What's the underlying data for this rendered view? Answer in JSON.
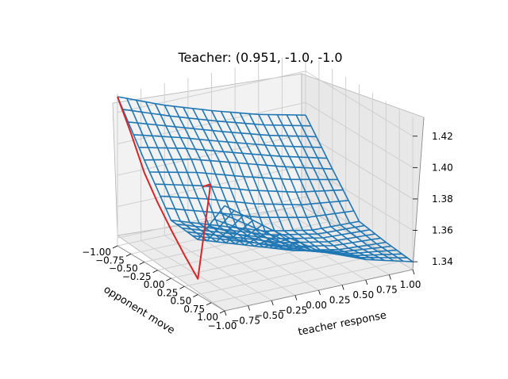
{
  "chart_data": {
    "type": "surface",
    "title": "Teacher: (0.951, -1.0, -1.0",
    "xlabel": "opponent move",
    "ylabel": "teacher response",
    "zlabel": "",
    "x_ticks": [
      "−1.00",
      "−0.75",
      "−0.50",
      "−0.25",
      "0.00",
      "0.25",
      "0.50",
      "0.75",
      "1.00"
    ],
    "y_ticks": [
      "−1.00",
      "−0.75",
      "−0.50",
      "−0.25",
      "0.00",
      "0.25",
      "0.50",
      "0.75",
      "1.00"
    ],
    "z_ticks": [
      "1.34",
      "1.36",
      "1.38",
      "1.40",
      "1.42"
    ],
    "xlim": [
      -1.0,
      1.0
    ],
    "ylim": [
      -1.0,
      1.0
    ],
    "zlim": [
      1.335,
      1.432
    ],
    "surface_color": "#1f77b4",
    "curve_color": "#d62728",
    "surface_samples": {
      "x": [
        -1.0,
        -0.5,
        0.0,
        0.5,
        1.0
      ],
      "y": [
        -1.0,
        -0.5,
        0.0,
        0.5,
        1.0
      ],
      "z": [
        [
          1.43,
          1.418,
          1.408,
          1.399,
          1.392
        ],
        [
          1.4,
          1.394,
          1.385,
          1.376,
          1.368
        ],
        [
          1.372,
          1.362,
          1.352,
          1.346,
          1.345
        ],
        [
          1.37,
          1.36,
          1.35,
          1.344,
          1.342
        ],
        [
          1.402,
          1.38,
          1.36,
          1.348,
          1.34
        ]
      ]
    },
    "red_curve": {
      "x": [
        -1.0,
        -0.75,
        -0.5,
        -0.25,
        0.0,
        0.25,
        0.5,
        0.55,
        0.55,
        0.5
      ],
      "y": [
        -1.0,
        -1.0,
        -1.0,
        -1.0,
        -1.0,
        -1.0,
        -1.0,
        -0.9,
        -0.9,
        -0.95
      ],
      "z": [
        1.43,
        1.412,
        1.392,
        1.378,
        1.366,
        1.355,
        1.345,
        1.402,
        1.405,
        1.403
      ]
    }
  }
}
